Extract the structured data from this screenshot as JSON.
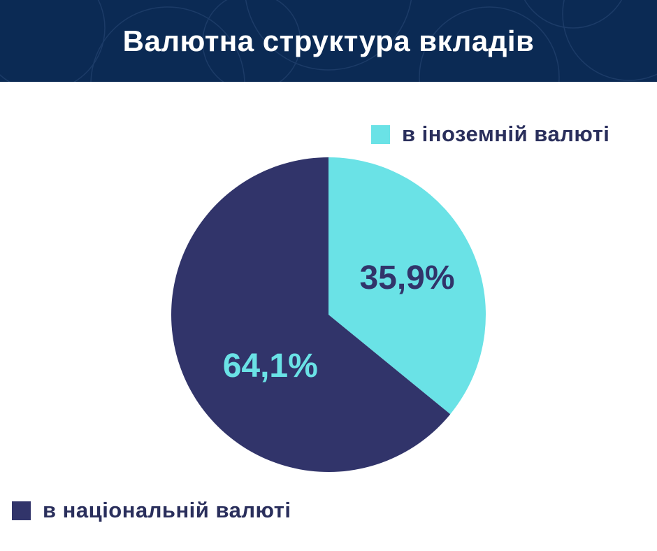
{
  "header": {
    "title": "Валютна структура вкладів"
  },
  "colors": {
    "header_bg": "#0b2a54",
    "foreign": "#6ae2e6",
    "national": "#31346a",
    "label_dark": "#31346a",
    "label_light": "#6ae2e6"
  },
  "chart_data": {
    "type": "pie",
    "title": "Валютна структура вкладів",
    "slices": [
      {
        "name": "в іноземній валюті",
        "value": 35.9,
        "label": "35,9%",
        "color": "#6ae2e6"
      },
      {
        "name": "в національній валюті",
        "value": 64.1,
        "label": "64,1%",
        "color": "#31346a"
      }
    ],
    "start_angle": "12 o'clock",
    "direction": "clockwise",
    "legend": [
      {
        "label": "в іноземній валюті",
        "color": "#6ae2e6",
        "placement": "top-right"
      },
      {
        "label": "в національній валюті",
        "color": "#31346a",
        "placement": "bottom-left"
      }
    ]
  }
}
